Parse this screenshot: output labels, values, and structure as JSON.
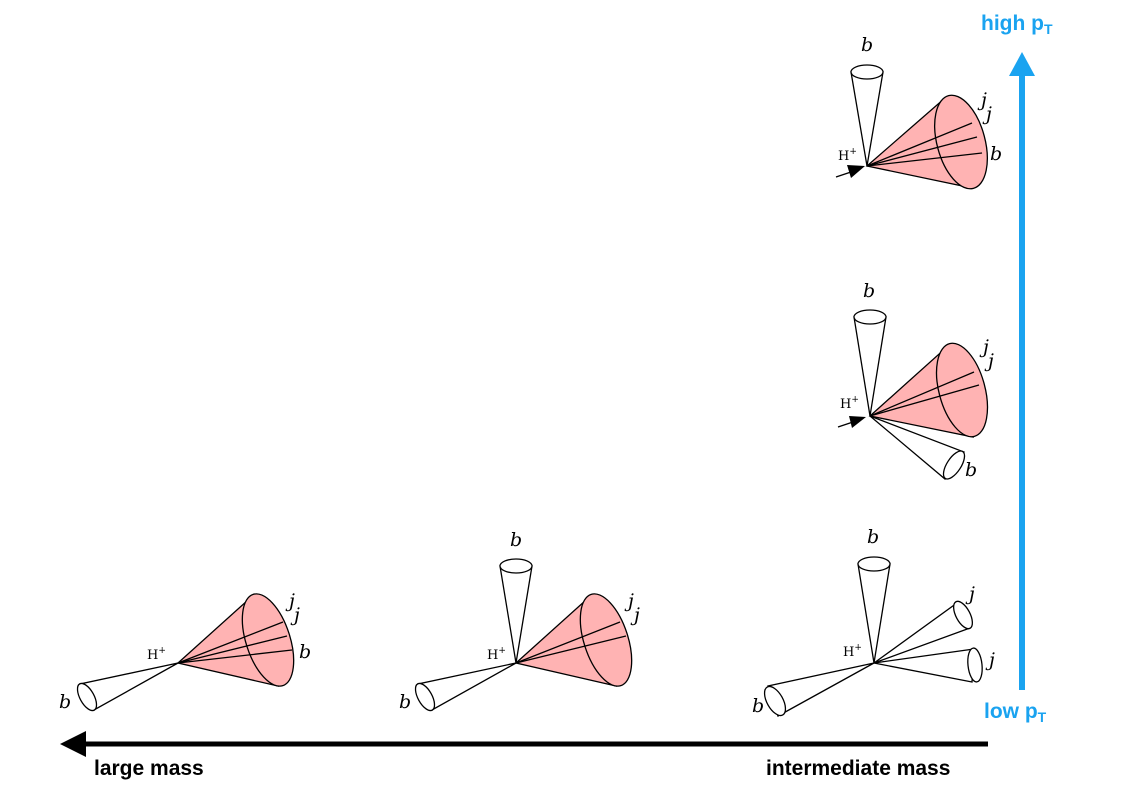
{
  "axes": {
    "horizontal_left_label": "large mass",
    "horizontal_right_label": "intermediate mass",
    "vertical_bottom_label": "low p",
    "vertical_bottom_sub": "T",
    "vertical_top_label": "high p",
    "vertical_top_sub": "T"
  },
  "colors": {
    "vertical_arrow": "#1aa3f0",
    "horizontal_arrow": "#000000",
    "merged_jet_fill": "#ffb3b3",
    "jet_fill": "#ffffff"
  },
  "labels": {
    "higgs": "H",
    "higgs_sup": "+",
    "b": "b",
    "j": "j"
  },
  "diagrams": [
    {
      "name": "bottom-left",
      "config": "fully merged",
      "jets": [
        "j",
        "j",
        "b"
      ],
      "recoil": "b"
    },
    {
      "name": "bottom-middle",
      "config": "partially merged",
      "jets": [
        "j",
        "j"
      ],
      "separate": [
        "b"
      ],
      "recoil": "b"
    },
    {
      "name": "bottom-right",
      "config": "resolved",
      "separate": [
        "j",
        "j",
        "b"
      ],
      "recoil": "b"
    },
    {
      "name": "middle-right",
      "config": "partially merged",
      "jets": [
        "j",
        "j"
      ],
      "separate": [
        "b",
        "b"
      ]
    },
    {
      "name": "top-right",
      "config": "fully merged",
      "jets": [
        "j",
        "j",
        "b"
      ],
      "separate": [
        "b"
      ]
    }
  ]
}
